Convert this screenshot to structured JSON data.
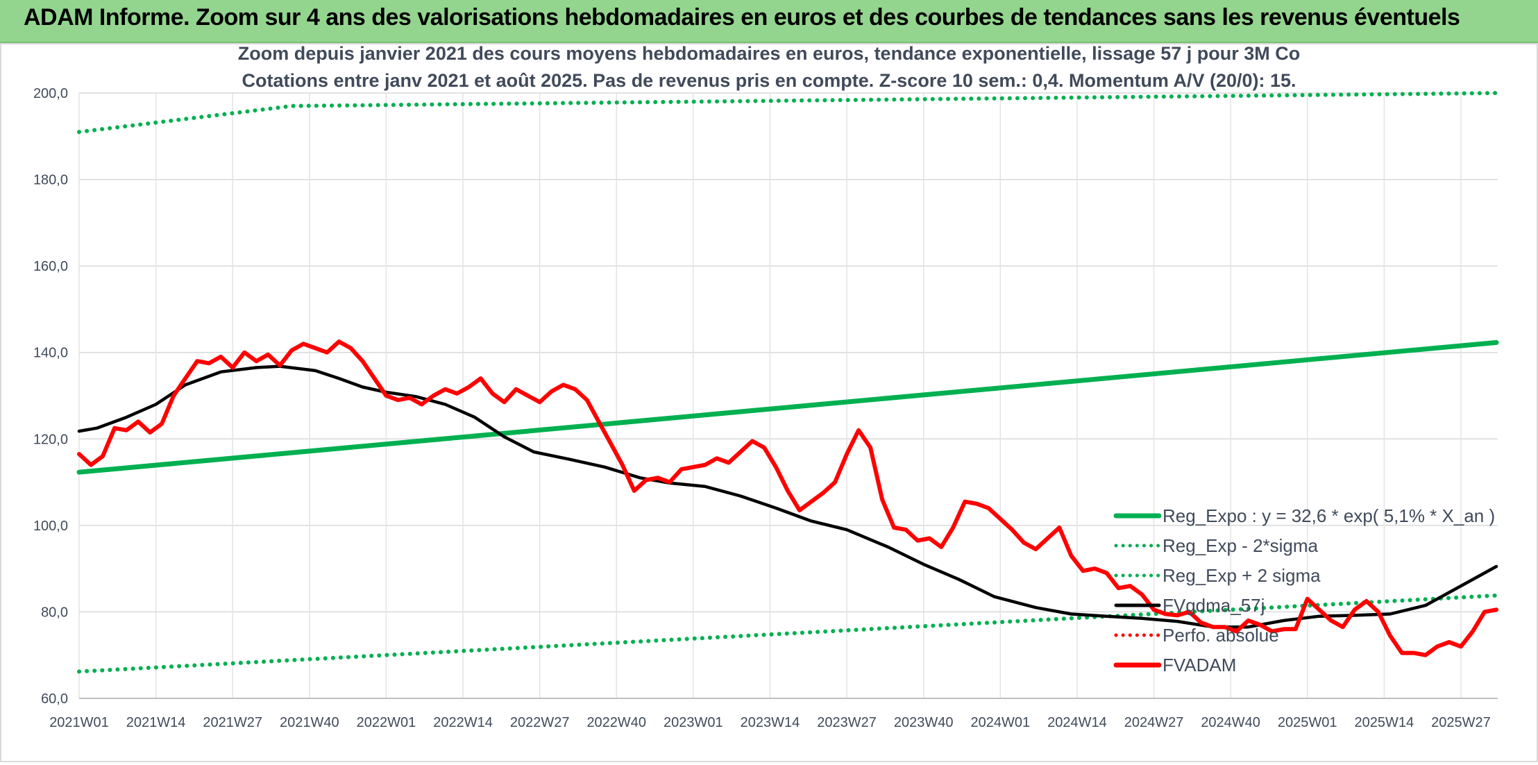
{
  "header": {
    "title": "ADAM Informe. Zoom sur 4 ans des valorisations hebdomadaires en euros et des courbes de tendances sans les revenus éventuels"
  },
  "chart_data": {
    "type": "line",
    "subtitle_1": "Zoom depuis janvier 2021 des cours moyens hebdomadaires en euros, tendance exponentielle, lissage 57 j pour 3M Co",
    "subtitle_2": "Cotations entre janv 2021 et août 2025. Pas de revenus pris en compte. Z-score 10 sem.: 0,4. Momentum A/V (20/0): 15.",
    "ylim": [
      60,
      200
    ],
    "y_ticks": [
      "60,0",
      "80,0",
      "100,0",
      "120,0",
      "140,0",
      "160,0",
      "180,0",
      "200,0"
    ],
    "x_ticks": [
      "2021W01",
      "2021W14",
      "2021W27",
      "2021W40",
      "2022W01",
      "2022W14",
      "2022W27",
      "2022W40",
      "2023W01",
      "2023W14",
      "2023W27",
      "2023W40",
      "2024W01",
      "2024W14",
      "2024W27",
      "2024W40",
      "2025W01",
      "2025W14",
      "2025W27"
    ],
    "grid": true,
    "legend_position": "bottom-right",
    "series": [
      {
        "name": "Reg_Expo : y = 32,6 * exp( 5,1% *  X_an )",
        "color": "#00b050",
        "style": "solid",
        "points": [
          [
            0,
            112.3
          ],
          [
            240,
            142.3
          ]
        ]
      },
      {
        "name": "Reg_Exp - 2*sigma",
        "color": "#00b050",
        "style": "dotted",
        "points": [
          [
            0,
            66.2
          ],
          [
            240,
            83.8
          ]
        ]
      },
      {
        "name": "Reg_Exp + 2 sigma",
        "color": "#00b050",
        "style": "dotted",
        "points": [
          [
            0,
            191.0
          ],
          [
            36,
            197.0
          ],
          [
            240,
            200.0
          ]
        ]
      },
      {
        "name": "FVgdma_57j",
        "color": "#000000",
        "style": "solid",
        "points": [
          [
            0,
            121.8
          ],
          [
            3,
            122.5
          ],
          [
            8,
            125.0
          ],
          [
            13,
            128.0
          ],
          [
            18,
            132.5
          ],
          [
            24,
            135.5
          ],
          [
            30,
            136.5
          ],
          [
            34,
            136.8
          ],
          [
            40,
            135.8
          ],
          [
            44,
            134.0
          ],
          [
            48,
            132.0
          ],
          [
            52,
            130.8
          ],
          [
            57,
            129.8
          ],
          [
            62,
            128.0
          ],
          [
            67,
            125.0
          ],
          [
            72,
            120.5
          ],
          [
            77,
            117.0
          ],
          [
            83,
            115.3
          ],
          [
            89,
            113.5
          ],
          [
            95,
            111.0
          ],
          [
            100,
            109.8
          ],
          [
            106,
            109.0
          ],
          [
            112,
            106.8
          ],
          [
            118,
            104.0
          ],
          [
            124,
            101.0
          ],
          [
            130,
            99.0
          ],
          [
            137,
            95.0
          ],
          [
            143,
            91.0
          ],
          [
            149,
            87.5
          ],
          [
            155,
            83.5
          ],
          [
            162,
            81.0
          ],
          [
            168,
            79.5
          ],
          [
            174,
            79.0
          ],
          [
            180,
            78.5
          ],
          [
            186,
            77.8
          ],
          [
            192,
            76.5
          ],
          [
            198,
            76.5
          ],
          [
            204,
            78.0
          ],
          [
            210,
            79.0
          ],
          [
            216,
            79.2
          ],
          [
            222,
            79.5
          ],
          [
            228,
            81.5
          ],
          [
            234,
            86.0
          ],
          [
            240,
            90.5
          ]
        ]
      },
      {
        "name": "Perfo. absolue",
        "color": "#ff0000",
        "style": "dotted",
        "points": []
      },
      {
        "name": "FVADAM",
        "color": "#ff0000",
        "style": "solid",
        "points": [
          [
            0,
            116.5
          ],
          [
            2,
            114.0
          ],
          [
            4,
            116.0
          ],
          [
            6,
            122.5
          ],
          [
            8,
            122.0
          ],
          [
            10,
            124.0
          ],
          [
            12,
            121.5
          ],
          [
            14,
            123.5
          ],
          [
            16,
            130.0
          ],
          [
            18,
            134.0
          ],
          [
            20,
            138.0
          ],
          [
            22,
            137.5
          ],
          [
            24,
            139.0
          ],
          [
            26,
            136.5
          ],
          [
            28,
            140.0
          ],
          [
            30,
            138.0
          ],
          [
            32,
            139.5
          ],
          [
            34,
            137.0
          ],
          [
            36,
            140.5
          ],
          [
            38,
            142.0
          ],
          [
            40,
            141.0
          ],
          [
            42,
            140.0
          ],
          [
            44,
            142.5
          ],
          [
            46,
            141.0
          ],
          [
            48,
            138.0
          ],
          [
            50,
            134.0
          ],
          [
            52,
            130.0
          ],
          [
            54,
            129.0
          ],
          [
            56,
            129.5
          ],
          [
            58,
            128.0
          ],
          [
            60,
            130.0
          ],
          [
            62,
            131.5
          ],
          [
            64,
            130.5
          ],
          [
            66,
            132.0
          ],
          [
            68,
            134.0
          ],
          [
            70,
            130.5
          ],
          [
            72,
            128.5
          ],
          [
            74,
            131.5
          ],
          [
            76,
            130.0
          ],
          [
            78,
            128.5
          ],
          [
            80,
            131.0
          ],
          [
            82,
            132.5
          ],
          [
            84,
            131.5
          ],
          [
            86,
            129.0
          ],
          [
            88,
            124.0
          ],
          [
            90,
            119.0
          ],
          [
            92,
            114.0
          ],
          [
            94,
            108.0
          ],
          [
            96,
            110.5
          ],
          [
            98,
            111.0
          ],
          [
            100,
            110.0
          ],
          [
            102,
            113.0
          ],
          [
            104,
            113.5
          ],
          [
            106,
            114.0
          ],
          [
            108,
            115.5
          ],
          [
            110,
            114.5
          ],
          [
            112,
            117.0
          ],
          [
            114,
            119.5
          ],
          [
            116,
            118.0
          ],
          [
            118,
            113.5
          ],
          [
            120,
            108.0
          ],
          [
            122,
            103.5
          ],
          [
            124,
            105.5
          ],
          [
            126,
            107.5
          ],
          [
            128,
            110.0
          ],
          [
            130,
            116.5
          ],
          [
            132,
            122.0
          ],
          [
            134,
            118.0
          ],
          [
            136,
            106.0
          ],
          [
            138,
            99.5
          ],
          [
            140,
            99.0
          ],
          [
            142,
            96.5
          ],
          [
            144,
            97.0
          ],
          [
            146,
            95.0
          ],
          [
            148,
            99.5
          ],
          [
            150,
            105.5
          ],
          [
            152,
            105.0
          ],
          [
            154,
            104.0
          ],
          [
            156,
            101.5
          ],
          [
            158,
            99.0
          ],
          [
            160,
            96.0
          ],
          [
            162,
            94.5
          ],
          [
            164,
            97.0
          ],
          [
            166,
            99.5
          ],
          [
            168,
            93.0
          ],
          [
            170,
            89.5
          ],
          [
            172,
            90.0
          ],
          [
            174,
            89.0
          ],
          [
            176,
            85.5
          ],
          [
            178,
            86.0
          ],
          [
            180,
            84.0
          ],
          [
            182,
            80.5
          ],
          [
            184,
            79.5
          ],
          [
            186,
            79.2
          ],
          [
            188,
            80.0
          ],
          [
            190,
            77.5
          ],
          [
            192,
            76.5
          ],
          [
            194,
            76.5
          ],
          [
            196,
            75.5
          ],
          [
            198,
            78.0
          ],
          [
            200,
            77.0
          ],
          [
            202,
            75.5
          ],
          [
            204,
            76.0
          ],
          [
            206,
            76.0
          ],
          [
            208,
            83.0
          ],
          [
            210,
            80.5
          ],
          [
            212,
            78.0
          ],
          [
            214,
            76.5
          ],
          [
            216,
            80.5
          ],
          [
            218,
            82.5
          ],
          [
            220,
            80.0
          ],
          [
            222,
            74.5
          ],
          [
            224,
            70.5
          ],
          [
            226,
            70.5
          ],
          [
            228,
            70.0
          ],
          [
            230,
            72.0
          ],
          [
            232,
            73.0
          ],
          [
            234,
            72.0
          ],
          [
            236,
            75.5
          ],
          [
            238,
            80.0
          ],
          [
            240,
            80.5
          ]
        ]
      }
    ]
  }
}
